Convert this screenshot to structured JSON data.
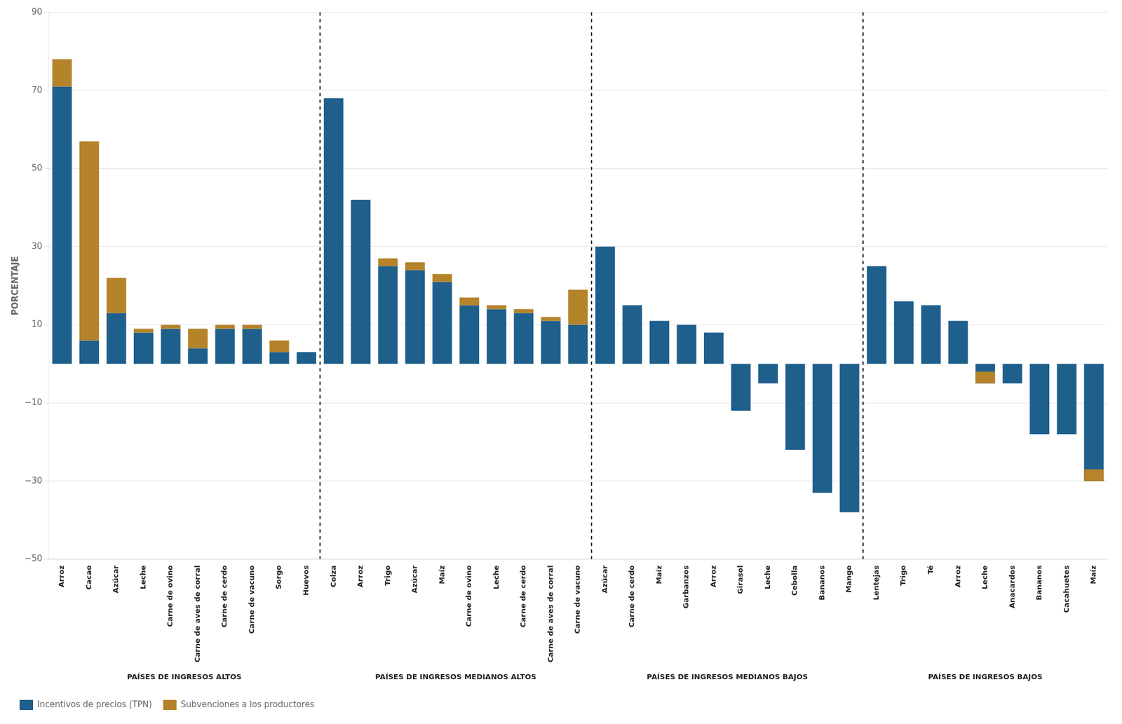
{
  "chart_data": {
    "type": "bar",
    "ylabel": "PORCENTAJE",
    "groups": [
      {
        "label": "PAÍSES DE INGRESOS ALTOS",
        "categories": [
          "Arroz",
          "Cacao",
          "Azúcar",
          "Leche",
          "Carne de ovino",
          "Carne de aves de corral",
          "Carne de cerdo",
          "Carne de vacuno",
          "Sorgo",
          "Huevos"
        ]
      },
      {
        "label": "PAÍSES DE INGRESOS MEDIANOS ALTOS",
        "categories": [
          "Colza",
          "Arroz",
          "Trigo",
          "Azúcar",
          "Maíz",
          "Carne de ovino",
          "Leche",
          "Carne de cerdo",
          "Carne de aves de corral",
          "Carne de vacuno"
        ]
      },
      {
        "label": "PAÍSES DE INGRESOS MEDIANOS BAJOS",
        "categories": [
          "Azúcar",
          "Carne de cerdo",
          "Maíz",
          "Garbanzos",
          "Arroz",
          "Girasol",
          "Leche",
          "Cebolla",
          "Bananos",
          "Mango"
        ]
      },
      {
        "label": "PAÍSES DE INGRESOS BAJOS",
        "categories": [
          "Lentejas",
          "Trigo",
          "Té",
          "Arroz",
          "Leche",
          "Anacardos",
          "Bananos",
          "Cacahuetes",
          "Maíz"
        ]
      }
    ],
    "series": [
      {
        "name": "Incentivos de precios (TPN)",
        "color": "#1E5F8C",
        "values": [
          71,
          6,
          13,
          8,
          9,
          4,
          9,
          9,
          3,
          3,
          68,
          42,
          25,
          24,
          21,
          15,
          14,
          13,
          11,
          10,
          30,
          15,
          11,
          10,
          8,
          -12,
          -5,
          -22,
          -33,
          -38,
          25,
          16,
          15,
          11,
          -5,
          -5,
          -18,
          -18,
          -30
        ]
      },
      {
        "name": "Subvenciones a los productores",
        "color": "#B5832A",
        "values": [
          7,
          51,
          9,
          1,
          1,
          5,
          1,
          1,
          3,
          0,
          0,
          0,
          2,
          2,
          2,
          2,
          1,
          1,
          1,
          9,
          0,
          0,
          0,
          0,
          0,
          0,
          0,
          0,
          0,
          0,
          0,
          0,
          0,
          0,
          3,
          0,
          0,
          0,
          3
        ]
      }
    ],
    "ylim": [
      -50,
      90
    ],
    "yticks": [
      {
        "value": -50,
        "label": "−50"
      },
      {
        "value": -30,
        "label": "−30"
      },
      {
        "value": -10,
        "label": "−10"
      },
      10,
      30,
      50,
      70,
      90
    ],
    "stacked": true,
    "grid": true,
    "legend": "lower left"
  }
}
